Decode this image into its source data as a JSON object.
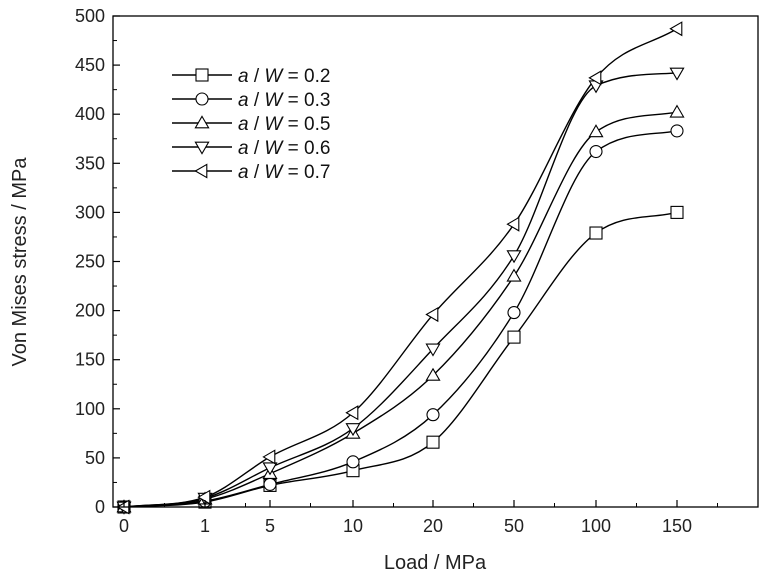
{
  "chart_data": {
    "type": "line",
    "xlabel": "Load / MPa",
    "ylabel": "Von Mises stress / MPa",
    "categories": [
      "0",
      "1",
      "5",
      "10",
      "20",
      "50",
      "100",
      "150"
    ],
    "ylim": [
      0,
      500
    ],
    "yticks": [
      0,
      50,
      100,
      150,
      200,
      250,
      300,
      350,
      400,
      450,
      500
    ],
    "grid": false,
    "legend_placement": "top-left",
    "series": [
      {
        "name": "a / W = 0.2",
        "var": "a",
        "var2": "W",
        "value": "0.2",
        "marker": "square",
        "values": [
          0,
          5,
          22,
          37,
          66,
          173,
          279,
          300
        ]
      },
      {
        "name": "a / W = 0.3",
        "var": "a",
        "var2": "W",
        "value": "0.3",
        "marker": "circle",
        "values": [
          0,
          6,
          23,
          46,
          94,
          198,
          362,
          383
        ]
      },
      {
        "name": "a / W = 0.5",
        "var": "a",
        "var2": "W",
        "value": "0.5",
        "marker": "triangle-up",
        "values": [
          0,
          8,
          34,
          75,
          134,
          235,
          382,
          402
        ]
      },
      {
        "name": "a / W = 0.6",
        "var": "a",
        "var2": "W",
        "value": "0.6",
        "marker": "triangle-down",
        "values": [
          0,
          9,
          40,
          80,
          161,
          256,
          429,
          442
        ]
      },
      {
        "name": "a / W = 0.7",
        "var": "a",
        "var2": "W",
        "value": "0.7",
        "marker": "triangle-left",
        "values": [
          0,
          10,
          51,
          96,
          196,
          288,
          437,
          487
        ]
      }
    ]
  }
}
